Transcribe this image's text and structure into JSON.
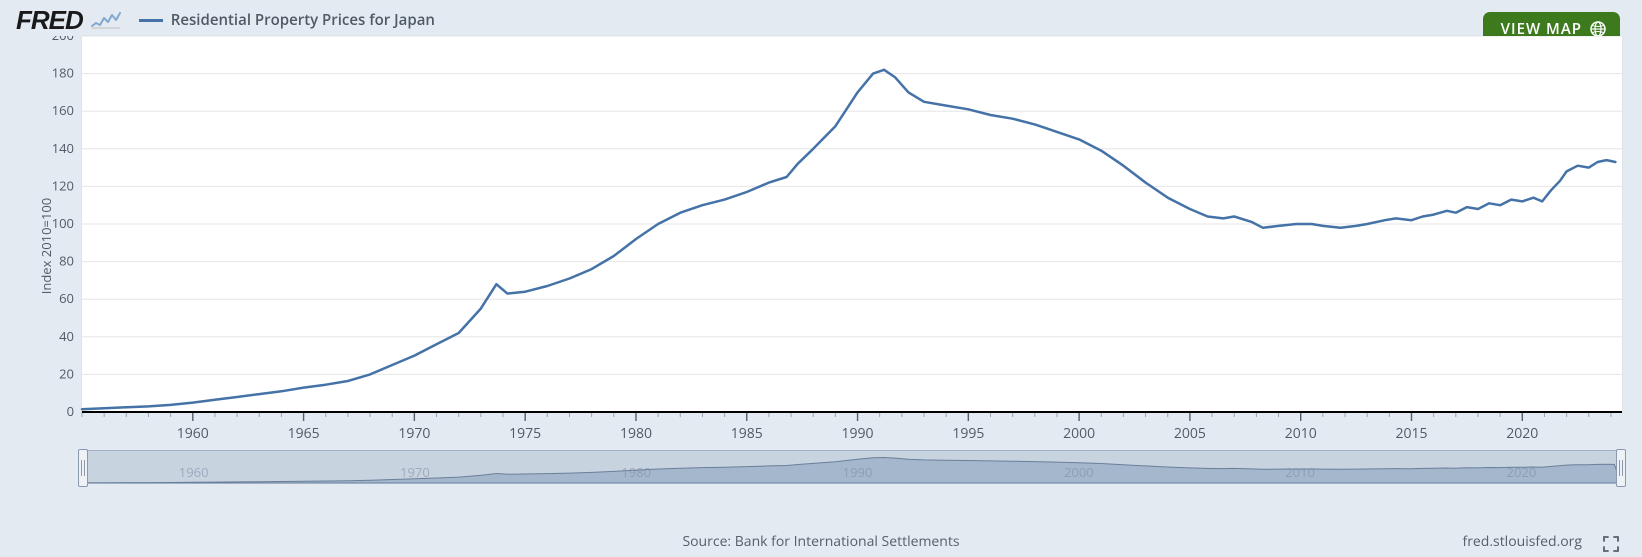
{
  "header": {
    "logo_text": "FRED",
    "series_title": "Residential Property Prices for Japan",
    "legend_line_color": "#4572a7"
  },
  "view_map_button": {
    "label": "VIEW MAP",
    "bg_color": "#3d7a1e"
  },
  "chart": {
    "type": "line",
    "background_color": "#ffffff",
    "grid_color": "#e6e6e6",
    "axis_font_size": 13,
    "y_axis_title": "Index 2010=100",
    "series_color": "#4572a7",
    "line_width": 2.5,
    "x_axis": {
      "min": 1955,
      "max": 2024.5,
      "ticks": [
        1960,
        1965,
        1970,
        1975,
        1980,
        1985,
        1990,
        1995,
        2000,
        2005,
        2010,
        2015,
        2020
      ],
      "minor_step": 1
    },
    "y_axis": {
      "min": 0,
      "max": 200,
      "tick_step": 20,
      "ticks": [
        0,
        20,
        40,
        60,
        80,
        100,
        120,
        140,
        160,
        180,
        200
      ]
    },
    "series": [
      {
        "x": 1955.0,
        "y": 1.5
      },
      {
        "x": 1956.0,
        "y": 2.0
      },
      {
        "x": 1957.0,
        "y": 2.5
      },
      {
        "x": 1958.0,
        "y": 3.0
      },
      {
        "x": 1959.0,
        "y": 3.8
      },
      {
        "x": 1960.0,
        "y": 5.0
      },
      {
        "x": 1961.0,
        "y": 6.5
      },
      {
        "x": 1962.0,
        "y": 8.0
      },
      {
        "x": 1963.0,
        "y": 9.5
      },
      {
        "x": 1964.0,
        "y": 11.0
      },
      {
        "x": 1965.0,
        "y": 13.0
      },
      {
        "x": 1966.0,
        "y": 14.5
      },
      {
        "x": 1967.0,
        "y": 16.5
      },
      {
        "x": 1968.0,
        "y": 20.0
      },
      {
        "x": 1969.0,
        "y": 25.0
      },
      {
        "x": 1970.0,
        "y": 30.0
      },
      {
        "x": 1971.0,
        "y": 36.0
      },
      {
        "x": 1972.0,
        "y": 42.0
      },
      {
        "x": 1973.0,
        "y": 55.0
      },
      {
        "x": 1973.7,
        "y": 68.0
      },
      {
        "x": 1974.2,
        "y": 63.0
      },
      {
        "x": 1975.0,
        "y": 64.0
      },
      {
        "x": 1976.0,
        "y": 67.0
      },
      {
        "x": 1977.0,
        "y": 71.0
      },
      {
        "x": 1978.0,
        "y": 76.0
      },
      {
        "x": 1979.0,
        "y": 83.0
      },
      {
        "x": 1980.0,
        "y": 92.0
      },
      {
        "x": 1981.0,
        "y": 100.0
      },
      {
        "x": 1982.0,
        "y": 106.0
      },
      {
        "x": 1983.0,
        "y": 110.0
      },
      {
        "x": 1984.0,
        "y": 113.0
      },
      {
        "x": 1985.0,
        "y": 117.0
      },
      {
        "x": 1986.0,
        "y": 122.0
      },
      {
        "x": 1986.8,
        "y": 125.0
      },
      {
        "x": 1987.3,
        "y": 132.0
      },
      {
        "x": 1988.0,
        "y": 140.0
      },
      {
        "x": 1989.0,
        "y": 152.0
      },
      {
        "x": 1990.0,
        "y": 170.0
      },
      {
        "x": 1990.7,
        "y": 180.0
      },
      {
        "x": 1991.2,
        "y": 182.0
      },
      {
        "x": 1991.7,
        "y": 178.0
      },
      {
        "x": 1992.3,
        "y": 170.0
      },
      {
        "x": 1993.0,
        "y": 165.0
      },
      {
        "x": 1994.0,
        "y": 163.0
      },
      {
        "x": 1995.0,
        "y": 161.0
      },
      {
        "x": 1996.0,
        "y": 158.0
      },
      {
        "x": 1997.0,
        "y": 156.0
      },
      {
        "x": 1998.0,
        "y": 153.0
      },
      {
        "x": 1999.0,
        "y": 149.0
      },
      {
        "x": 2000.0,
        "y": 145.0
      },
      {
        "x": 2001.0,
        "y": 139.0
      },
      {
        "x": 2002.0,
        "y": 131.0
      },
      {
        "x": 2003.0,
        "y": 122.0
      },
      {
        "x": 2004.0,
        "y": 114.0
      },
      {
        "x": 2005.0,
        "y": 108.0
      },
      {
        "x": 2005.8,
        "y": 104.0
      },
      {
        "x": 2006.5,
        "y": 103.0
      },
      {
        "x": 2007.0,
        "y": 104.0
      },
      {
        "x": 2007.8,
        "y": 101.0
      },
      {
        "x": 2008.3,
        "y": 98.0
      },
      {
        "x": 2009.0,
        "y": 99.0
      },
      {
        "x": 2009.8,
        "y": 100.0
      },
      {
        "x": 2010.5,
        "y": 100.0
      },
      {
        "x": 2011.0,
        "y": 99.0
      },
      {
        "x": 2011.8,
        "y": 98.0
      },
      {
        "x": 2012.5,
        "y": 99.0
      },
      {
        "x": 2013.0,
        "y": 100.0
      },
      {
        "x": 2013.8,
        "y": 102.0
      },
      {
        "x": 2014.3,
        "y": 103.0
      },
      {
        "x": 2015.0,
        "y": 102.0
      },
      {
        "x": 2015.5,
        "y": 104.0
      },
      {
        "x": 2016.0,
        "y": 105.0
      },
      {
        "x": 2016.6,
        "y": 107.0
      },
      {
        "x": 2017.0,
        "y": 106.0
      },
      {
        "x": 2017.5,
        "y": 109.0
      },
      {
        "x": 2018.0,
        "y": 108.0
      },
      {
        "x": 2018.5,
        "y": 111.0
      },
      {
        "x": 2019.0,
        "y": 110.0
      },
      {
        "x": 2019.5,
        "y": 113.0
      },
      {
        "x": 2020.0,
        "y": 112.0
      },
      {
        "x": 2020.5,
        "y": 114.0
      },
      {
        "x": 2020.9,
        "y": 112.0
      },
      {
        "x": 2021.3,
        "y": 118.0
      },
      {
        "x": 2021.7,
        "y": 123.0
      },
      {
        "x": 2022.0,
        "y": 128.0
      },
      {
        "x": 2022.5,
        "y": 131.0
      },
      {
        "x": 2023.0,
        "y": 130.0
      },
      {
        "x": 2023.4,
        "y": 133.0
      },
      {
        "x": 2023.8,
        "y": 134.0
      },
      {
        "x": 2024.2,
        "y": 133.0
      }
    ]
  },
  "navigator": {
    "bg_color": "#c8d3e0",
    "fill_color": "#9fb2c9",
    "stroke_color": "#6a7f9a",
    "ticks": [
      1960,
      1970,
      1980,
      1990,
      2000,
      2010,
      2020
    ]
  },
  "footer": {
    "source_label": "Source: Bank for International Settlements",
    "attribution": "fred.stlouisfed.org"
  }
}
